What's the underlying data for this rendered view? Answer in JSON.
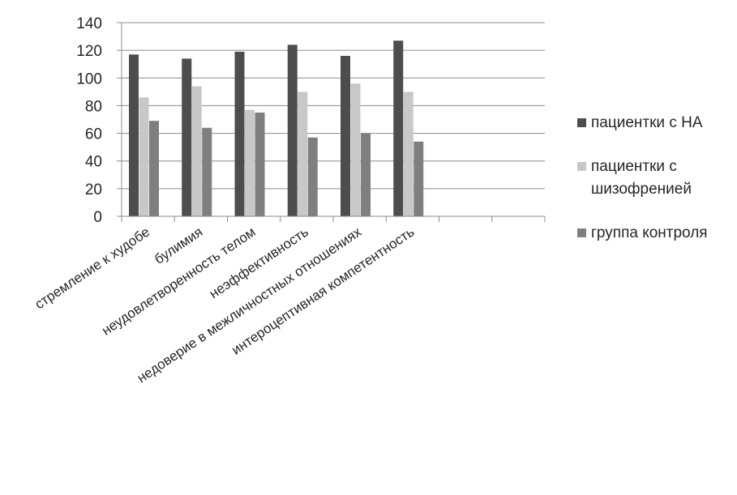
{
  "chart_data": {
    "type": "bar",
    "title": "",
    "xlabel": "",
    "ylabel": "",
    "ylim": [
      0,
      140
    ],
    "yticks": [
      0,
      20,
      40,
      60,
      80,
      100,
      120,
      140
    ],
    "grid": true,
    "legend_position": "right",
    "categories": [
      "стремление к худобе",
      "булимия",
      "неудовлетворенность телом",
      "неэффективность",
      "недоверие в межличностных отношениях",
      "интероцептивная компетентность",
      "",
      ""
    ],
    "series": [
      {
        "name": "пациентки с НА",
        "color": "#4d4d4d",
        "values": [
          117,
          114,
          119,
          124,
          116,
          127,
          null,
          null
        ]
      },
      {
        "name": "пациентки с шизофренией",
        "color": "#c8c8c8",
        "values": [
          86,
          94,
          77,
          90,
          96,
          90,
          null,
          null
        ]
      },
      {
        "name": "группа контроля",
        "color": "#7f7f7f",
        "values": [
          69,
          64,
          75,
          57,
          60,
          54,
          null,
          null
        ]
      }
    ]
  }
}
